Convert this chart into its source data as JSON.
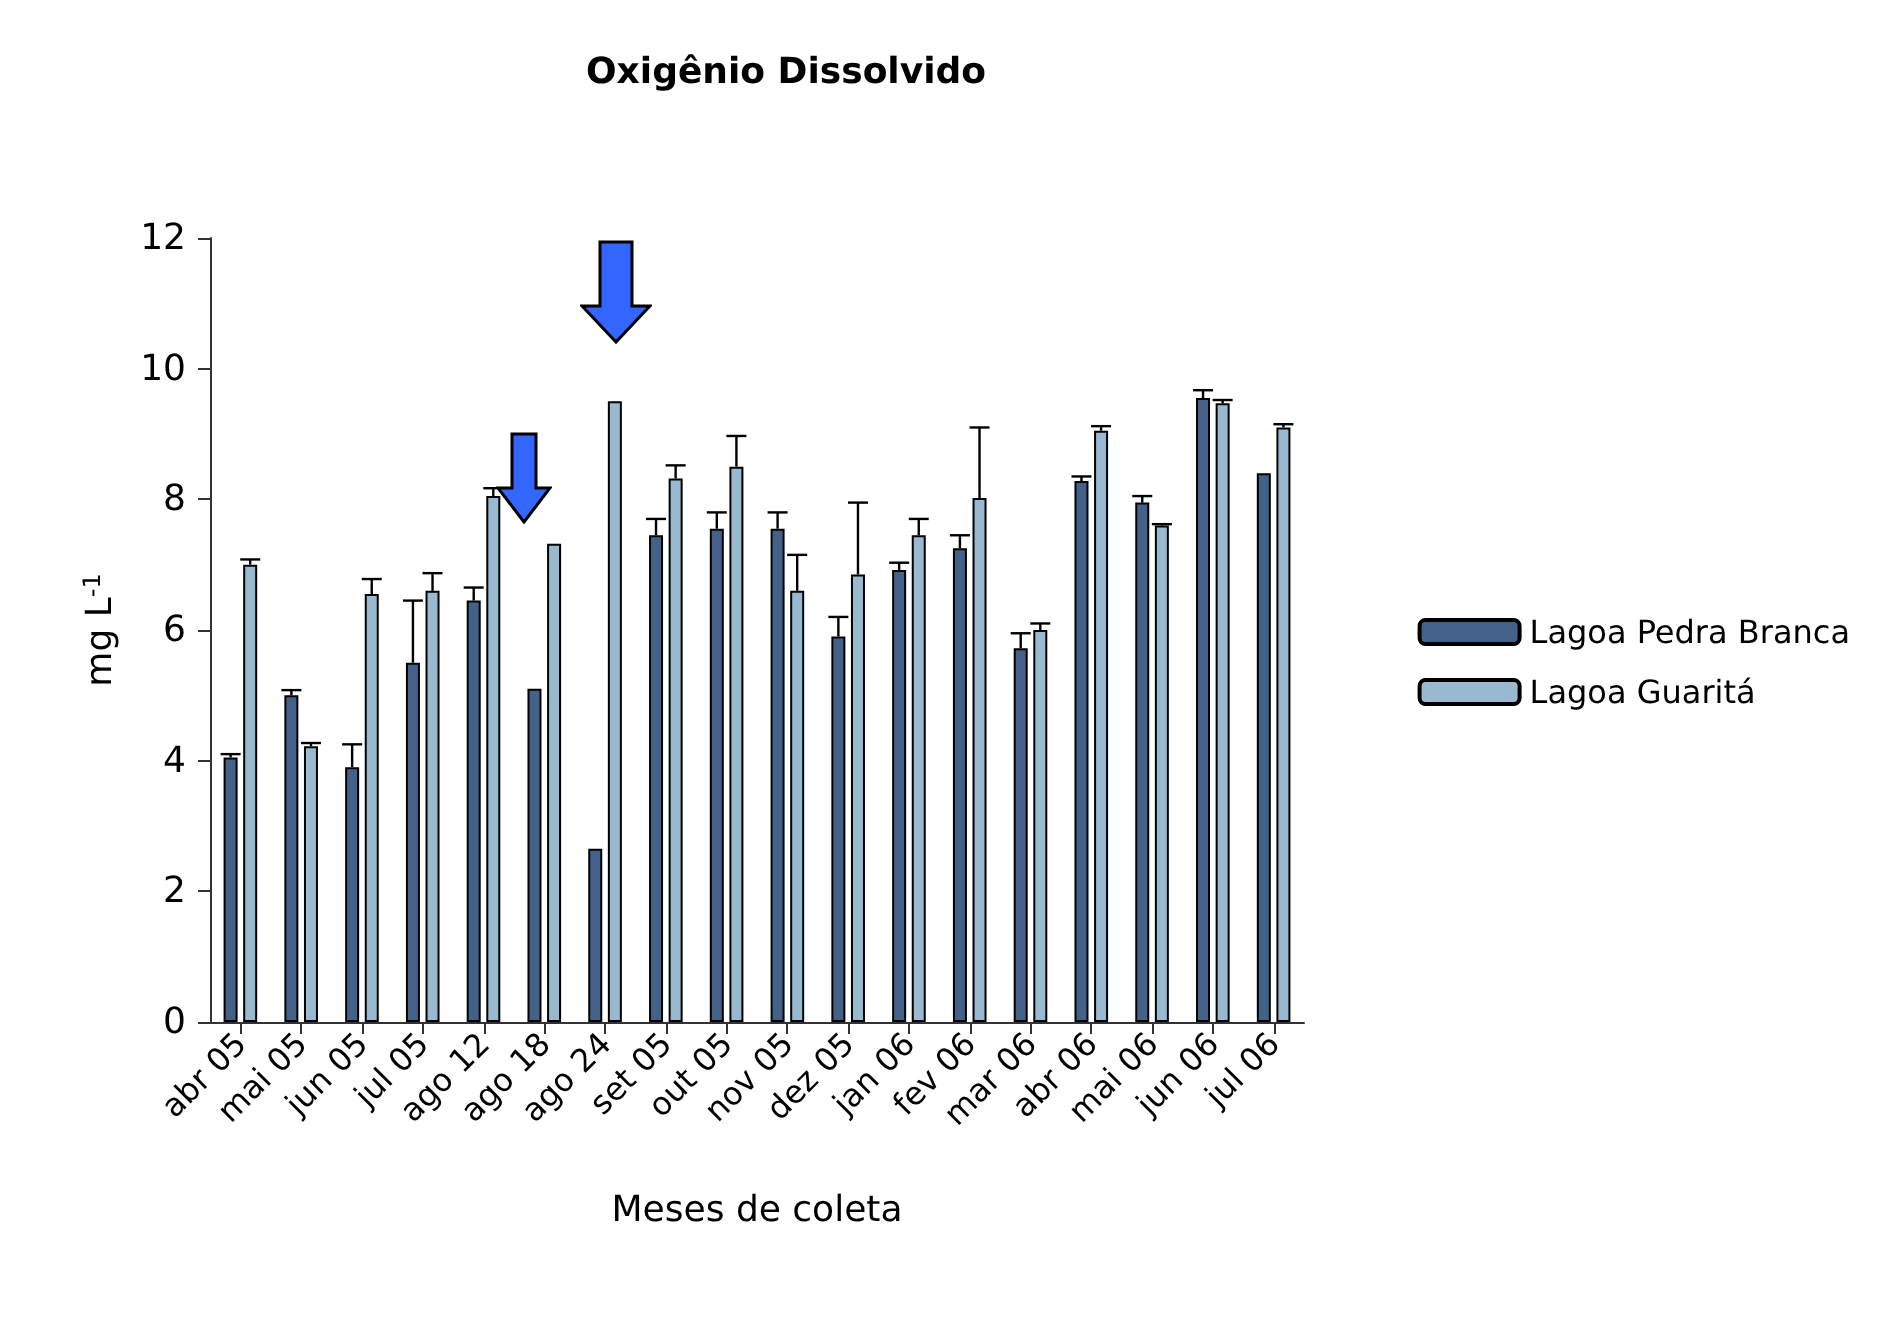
{
  "chart_data": {
    "type": "bar",
    "title": "Oxigênio Dissolvido",
    "xlabel": "Meses de coleta",
    "ylabel": "mg L$^{-1}$",
    "categories": [
      "abr 05",
      "mai 05",
      "jun 05",
      "jul 05",
      "ago 12",
      "ago 18",
      "ago 24",
      "set 05",
      "out 05",
      "nov 05",
      "dez 05",
      "jan 06",
      "fev 06",
      "mar 06",
      "abr 06",
      "mai 06",
      "jun 06",
      "jul 06"
    ],
    "series": [
      {
        "name": "Lagoa Pedra Branca",
        "color": "#44618a",
        "values": [
          4.05,
          5.0,
          3.9,
          5.5,
          6.45,
          5.1,
          2.65,
          7.45,
          7.55,
          7.55,
          5.9,
          6.92,
          7.25,
          5.72,
          8.28,
          7.95,
          9.55,
          8.4
        ],
        "errors": [
          [
            4.05,
            4.1
          ],
          [
            5.0,
            5.08
          ],
          [
            3.9,
            4.25
          ],
          [
            5.5,
            6.45
          ],
          [
            6.45,
            6.65
          ],
          null,
          null,
          [
            7.45,
            7.7
          ],
          [
            7.55,
            7.8
          ],
          [
            7.55,
            7.8
          ],
          [
            5.9,
            6.2
          ],
          [
            6.92,
            7.03
          ],
          [
            7.25,
            7.45
          ],
          [
            5.72,
            5.95
          ],
          [
            8.28,
            8.35
          ],
          [
            7.95,
            8.05
          ],
          [
            9.55,
            9.67
          ],
          null
        ]
      },
      {
        "name": "Lagoa Guaritá",
        "color": "#98b9cf",
        "values": [
          7.0,
          4.22,
          6.55,
          6.6,
          8.05,
          7.32,
          9.5,
          8.32,
          8.5,
          6.6,
          6.85,
          7.45,
          8.02,
          6.0,
          9.05,
          7.6,
          9.47,
          9.1
        ],
        "errors": [
          [
            7.0,
            7.08
          ],
          [
            4.22,
            4.27
          ],
          [
            6.55,
            6.78
          ],
          [
            6.6,
            6.87
          ],
          [
            8.05,
            8.17
          ],
          null,
          null,
          [
            8.32,
            8.52
          ],
          [
            8.5,
            8.97
          ],
          [
            6.6,
            7.15
          ],
          [
            6.85,
            7.95
          ],
          [
            7.45,
            7.7
          ],
          [
            8.02,
            9.1
          ],
          [
            6.0,
            6.1
          ],
          [
            9.05,
            9.12
          ],
          [
            7.6,
            7.62
          ],
          [
            9.47,
            9.52
          ],
          [
            9.1,
            9.15
          ]
        ]
      }
    ],
    "ylim": [
      0,
      12
    ],
    "yticks": [
      0,
      2,
      4,
      6,
      8,
      10,
      12
    ],
    "grid": false,
    "legend": "right"
  }
}
